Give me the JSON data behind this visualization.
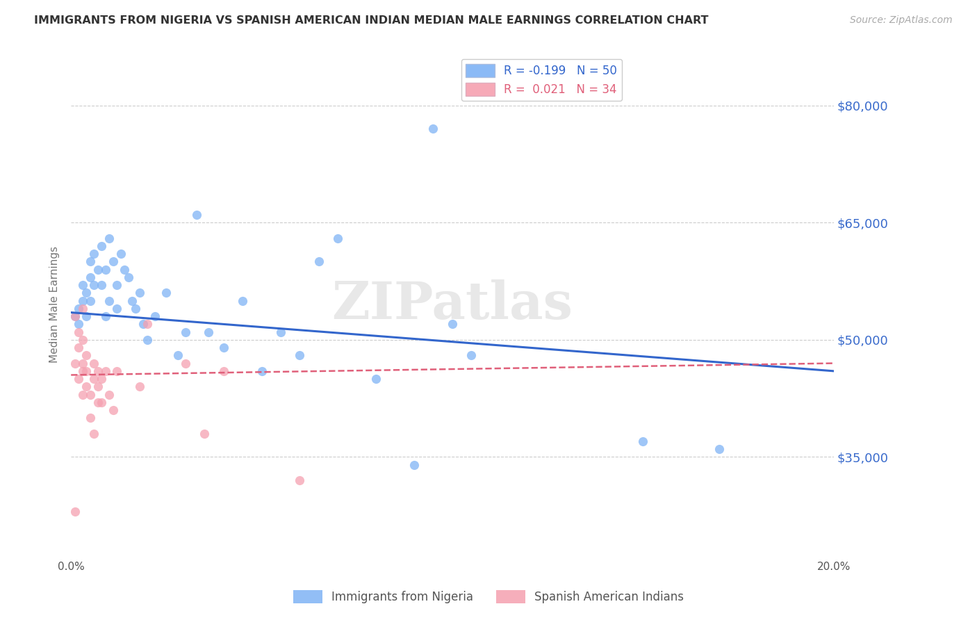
{
  "title": "IMMIGRANTS FROM NIGERIA VS SPANISH AMERICAN INDIAN MEDIAN MALE EARNINGS CORRELATION CHART",
  "source": "Source: ZipAtlas.com",
  "ylabel": "Median Male Earnings",
  "watermark": "ZIPatlas",
  "xlim": [
    0.0,
    0.2
  ],
  "ylim": [
    22000,
    87000
  ],
  "yticks": [
    35000,
    50000,
    65000,
    80000
  ],
  "xticks": [
    0.0,
    0.05,
    0.1,
    0.15,
    0.2
  ],
  "xtick_labels": [
    "0.0%",
    "",
    "",
    "",
    "20.0%"
  ],
  "ytick_labels": [
    "$35,000",
    "$50,000",
    "$65,000",
    "$80,000"
  ],
  "grid_color": "#cccccc",
  "background_color": "#ffffff",
  "blue_scatter_x": [
    0.001,
    0.002,
    0.002,
    0.003,
    0.003,
    0.004,
    0.004,
    0.005,
    0.005,
    0.005,
    0.006,
    0.006,
    0.007,
    0.008,
    0.008,
    0.009,
    0.009,
    0.01,
    0.01,
    0.011,
    0.012,
    0.012,
    0.013,
    0.014,
    0.015,
    0.016,
    0.017,
    0.018,
    0.019,
    0.02,
    0.022,
    0.025,
    0.028,
    0.03,
    0.033,
    0.036,
    0.04,
    0.045,
    0.05,
    0.055,
    0.06,
    0.065,
    0.07,
    0.08,
    0.09,
    0.095,
    0.1,
    0.105,
    0.15,
    0.17
  ],
  "blue_scatter_y": [
    53000,
    54000,
    52000,
    57000,
    55000,
    56000,
    53000,
    60000,
    58000,
    55000,
    61000,
    57000,
    59000,
    62000,
    57000,
    53000,
    59000,
    63000,
    55000,
    60000,
    57000,
    54000,
    61000,
    59000,
    58000,
    55000,
    54000,
    56000,
    52000,
    50000,
    53000,
    56000,
    48000,
    51000,
    66000,
    51000,
    49000,
    55000,
    46000,
    51000,
    48000,
    60000,
    63000,
    45000,
    34000,
    77000,
    52000,
    48000,
    37000,
    36000
  ],
  "pink_scatter_x": [
    0.001,
    0.001,
    0.001,
    0.002,
    0.002,
    0.002,
    0.003,
    0.003,
    0.003,
    0.003,
    0.003,
    0.004,
    0.004,
    0.004,
    0.005,
    0.005,
    0.006,
    0.006,
    0.006,
    0.007,
    0.007,
    0.007,
    0.008,
    0.008,
    0.009,
    0.01,
    0.011,
    0.012,
    0.018,
    0.02,
    0.03,
    0.035,
    0.04,
    0.06
  ],
  "pink_scatter_y": [
    53000,
    47000,
    28000,
    51000,
    49000,
    45000,
    54000,
    50000,
    47000,
    46000,
    43000,
    48000,
    46000,
    44000,
    43000,
    40000,
    47000,
    45000,
    38000,
    46000,
    44000,
    42000,
    45000,
    42000,
    46000,
    43000,
    41000,
    46000,
    44000,
    52000,
    47000,
    38000,
    46000,
    32000
  ],
  "blue_line_x": [
    0.0,
    0.2
  ],
  "blue_line_y": [
    53500,
    46000
  ],
  "pink_line_x": [
    0.0,
    0.2
  ],
  "pink_line_y": [
    45500,
    47000
  ],
  "legend_series1": "R = -0.199   N = 50",
  "legend_series2": "R =  0.021   N = 34",
  "series1_name": "Immigrants from Nigeria",
  "series2_name": "Spanish American Indians",
  "blue_color": "#7fb3f5",
  "pink_color": "#f5a0b0",
  "blue_line_color": "#3366cc",
  "pink_line_color": "#e0607a",
  "title_color": "#333333",
  "right_ytick_color": "#3a6bcc"
}
